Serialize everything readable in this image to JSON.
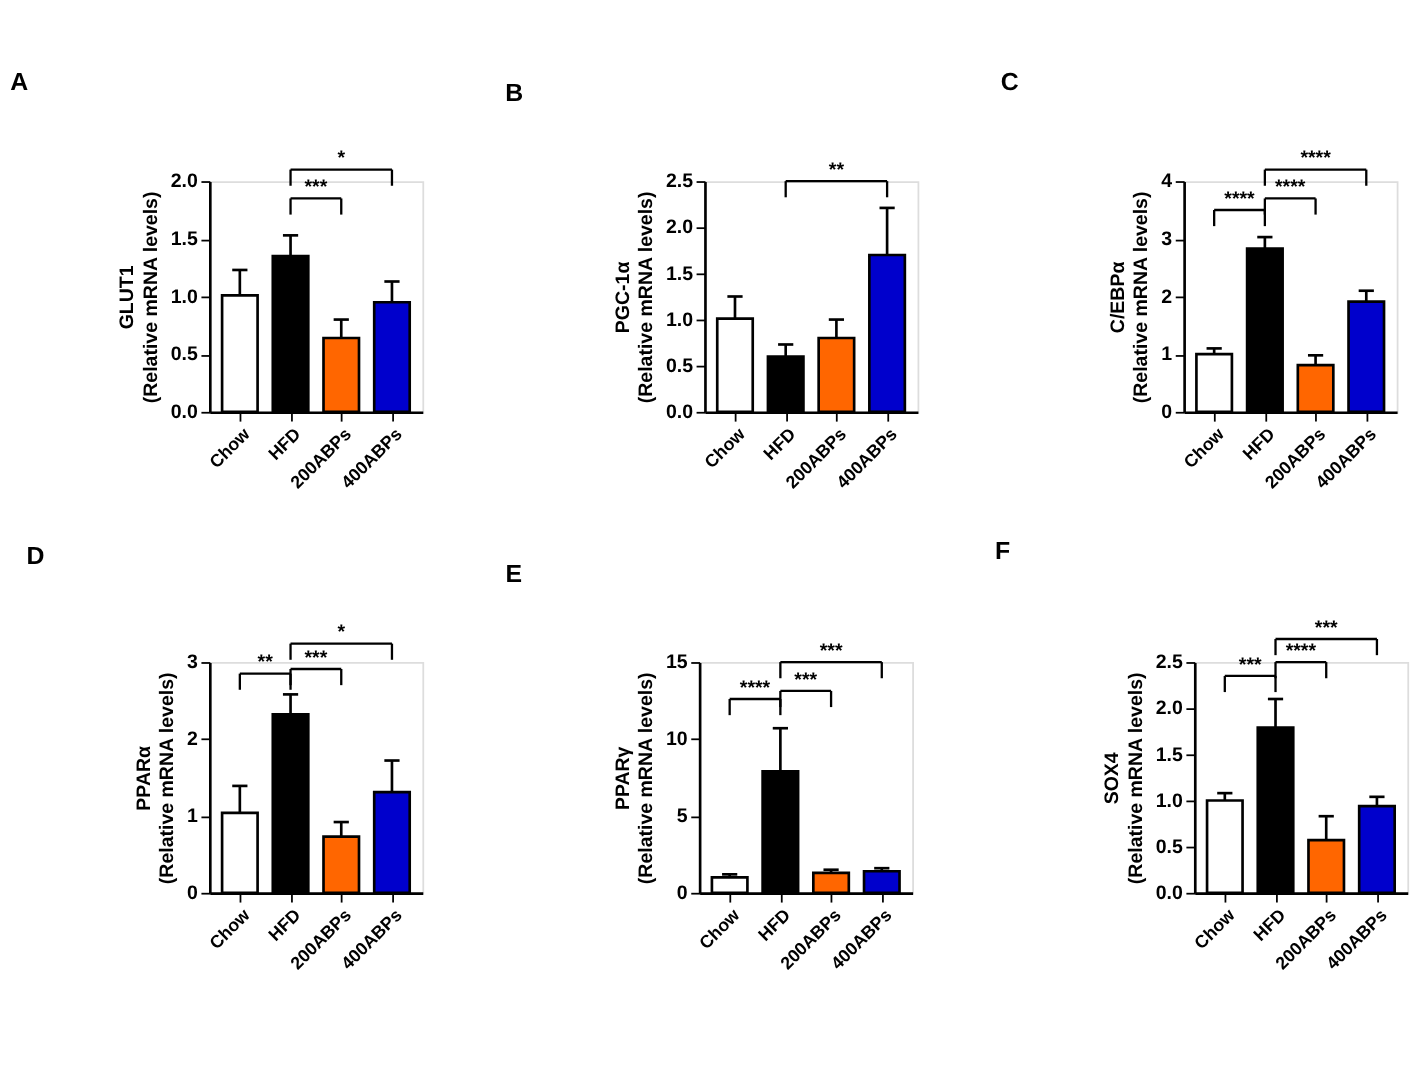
{
  "chart_data": [
    {
      "type": "bar",
      "title": "A",
      "ylabel": "GLUT1\n(Relative mRNA levels)",
      "categories": [
        "Chow",
        "HFD",
        "200ABPs",
        "400ABPs"
      ],
      "colors": [
        "#ffffff",
        "#000000",
        "#ff6600",
        "#0000cc"
      ],
      "values": [
        1.01,
        1.35,
        0.64,
        0.95
      ],
      "errors": [
        [
          1.01,
          1.23
        ],
        [
          1.35,
          1.53
        ],
        [
          0.64,
          0.8
        ],
        [
          0.95,
          1.13
        ]
      ],
      "ylim": [
        0,
        2.0
      ],
      "yticks": [
        {
          "value": 0,
          "label": "0.0"
        },
        0.5,
        {
          "value": 1,
          "label": "1.0"
        },
        1.5,
        {
          "value": 2,
          "label": "2.0"
        }
      ],
      "annotations": [
        "***",
        "*"
      ]
    },
    {
      "type": "bar",
      "title": "B",
      "ylabel": "PGC-1α\n(Relative mRNA levels)",
      "categories": [
        "Chow",
        "HFD",
        "200ABPs",
        "400ABPs"
      ],
      "colors": [
        "#ffffff",
        "#000000",
        "#ff6600",
        "#0000cc"
      ],
      "values": [
        1.01,
        0.6,
        0.8,
        1.7
      ],
      "errors": [
        [
          1.01,
          1.25
        ],
        [
          0.6,
          0.73
        ],
        [
          0.8,
          1.0
        ],
        [
          1.7,
          2.21
        ]
      ],
      "ylim": [
        0,
        2.5
      ],
      "yticks": [
        {
          "value": 0,
          "label": "0.0"
        },
        0.5,
        {
          "value": 1,
          "label": "1.0"
        },
        1.5,
        {
          "value": 2,
          "label": "2.0"
        },
        2.5
      ],
      "annotations": [
        "**"
      ]
    },
    {
      "type": "bar",
      "title": "C",
      "ylabel": "C/EBPα\n(Relative mRNA levels)",
      "categories": [
        "Chow",
        "HFD",
        "200ABPs",
        "400ABPs"
      ],
      "colors": [
        "#ffffff",
        "#000000",
        "#ff6600",
        "#0000cc"
      ],
      "values": [
        1.0,
        2.83,
        0.81,
        1.91
      ],
      "errors": [
        [
          1.0,
          1.1
        ],
        [
          2.83,
          3.03
        ],
        [
          0.81,
          0.98
        ],
        [
          1.91,
          2.1
        ]
      ],
      "ylim": [
        0,
        4
      ],
      "yticks": [
        0,
        1,
        2,
        3,
        4
      ],
      "annotations": [
        "****",
        "****",
        "****"
      ]
    },
    {
      "type": "bar",
      "title": "D",
      "ylabel": "PPARα\n(Relative mRNA levels)",
      "categories": [
        "Chow",
        "HFD",
        "200ABPs",
        "400ABPs"
      ],
      "colors": [
        "#ffffff",
        "#000000",
        "#ff6600",
        "#0000cc"
      ],
      "values": [
        1.04,
        2.32,
        0.73,
        1.31
      ],
      "errors": [
        [
          1.04,
          1.39
        ],
        [
          2.32,
          2.58
        ],
        [
          0.73,
          0.92
        ],
        [
          1.31,
          1.72
        ]
      ],
      "ylim": [
        0,
        3
      ],
      "yticks": [
        0,
        1,
        2,
        3
      ],
      "annotations": [
        "**",
        "***",
        "*"
      ]
    },
    {
      "type": "bar",
      "title": "E",
      "ylabel": "PPARγ\n(Relative mRNA levels)",
      "categories": [
        "Chow",
        "HFD",
        "200ABPs",
        "400ABPs"
      ],
      "colors": [
        "#ffffff",
        "#000000",
        "#ff6600",
        "#0000cc"
      ],
      "values": [
        1.0,
        7.9,
        1.3,
        1.4
      ],
      "errors": [
        [
          1.0,
          1.2
        ],
        [
          7.9,
          10.7
        ],
        [
          1.3,
          1.5
        ],
        [
          1.4,
          1.6
        ]
      ],
      "ylim": [
        0,
        15
      ],
      "yticks": [
        0,
        5,
        10,
        15
      ],
      "annotations": [
        "****",
        "***",
        "***"
      ]
    },
    {
      "type": "bar",
      "title": "F",
      "ylabel": "SOX4\n(Relative mRNA levels)",
      "categories": [
        "Chow",
        "HFD",
        "200ABPs",
        "400ABPs"
      ],
      "colors": [
        "#ffffff",
        "#000000",
        "#ff6600",
        "#0000cc"
      ],
      "values": [
        1.0,
        1.79,
        0.57,
        0.94
      ],
      "errors": [
        [
          1.0,
          1.08
        ],
        [
          1.79,
          2.1
        ],
        [
          0.57,
          0.83
        ],
        [
          0.94,
          1.04
        ]
      ],
      "ylim": [
        0,
        2.5
      ],
      "yticks": [
        {
          "value": 0,
          "label": "0.0"
        },
        0.5,
        {
          "value": 1,
          "label": "1.0"
        },
        1.5,
        {
          "value": 2,
          "label": "2.0"
        },
        2.5
      ],
      "annotations": [
        "***",
        "****",
        "***"
      ]
    }
  ]
}
